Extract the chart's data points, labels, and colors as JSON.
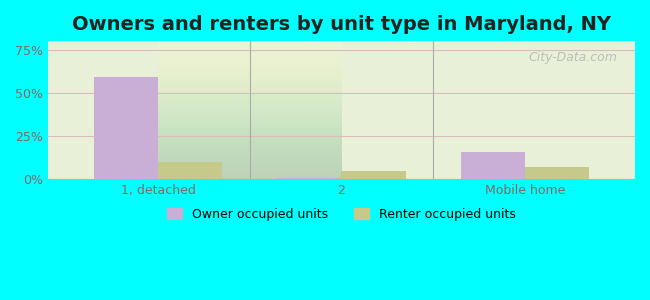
{
  "title": "Owners and renters by unit type in Maryland, NY",
  "categories": [
    "1, detached",
    "2",
    "Mobile home"
  ],
  "owner_values": [
    59,
    1,
    16
  ],
  "renter_values": [
    10,
    5,
    7
  ],
  "owner_color": "#c9aed6",
  "renter_color": "#c5c98a",
  "yticks": [
    0,
    25,
    50,
    75
  ],
  "ytick_labels": [
    "0%",
    "25%",
    "50%",
    "75%"
  ],
  "ylim": [
    0,
    80
  ],
  "bar_width": 0.35,
  "background_color": "#00ffff",
  "plot_bg_top": "#e8f0d8",
  "plot_bg_bottom": "#f5f8ee",
  "watermark": "City-Data.com",
  "legend_owner": "Owner occupied units",
  "legend_renter": "Renter occupied units",
  "title_fontsize": 14,
  "tick_color": "#886666",
  "grid_color": "#ddbbbb"
}
